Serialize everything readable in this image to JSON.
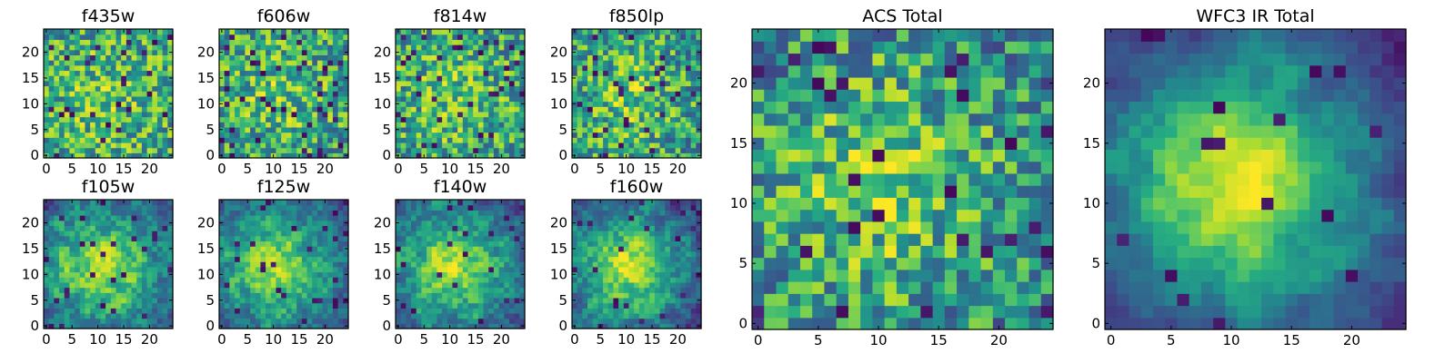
{
  "figure": {
    "description_free": true
  },
  "chart_data": [
    {
      "type": "heatmap",
      "title": "f435w",
      "size": 25,
      "seed": 11,
      "smooth": 0,
      "blob": 0.1,
      "dark": 0.05,
      "xticks": [
        0,
        5,
        10,
        15,
        20
      ],
      "yticks": [
        0,
        5,
        10,
        15,
        20
      ]
    },
    {
      "type": "heatmap",
      "title": "f606w",
      "size": 25,
      "seed": 23,
      "smooth": 0,
      "blob": 0.15,
      "dark": 0.06,
      "xticks": [
        0,
        5,
        10,
        15,
        20
      ],
      "yticks": [
        0,
        5,
        10,
        15,
        20
      ]
    },
    {
      "type": "heatmap",
      "title": "f814w",
      "size": 25,
      "seed": 37,
      "smooth": 0,
      "blob": 0.15,
      "dark": 0.05,
      "xticks": [
        0,
        5,
        10,
        15,
        20
      ],
      "yticks": [
        0,
        5,
        10,
        15,
        20
      ]
    },
    {
      "type": "heatmap",
      "title": "f850lp",
      "size": 25,
      "seed": 41,
      "smooth": 0,
      "blob": 0.2,
      "dark": 0.06,
      "xticks": [
        0,
        5,
        10,
        15,
        20
      ],
      "yticks": [
        0,
        5,
        10,
        15,
        20
      ]
    },
    {
      "type": "heatmap",
      "title": "f105w",
      "size": 25,
      "seed": 53,
      "smooth": 1,
      "blob": 0.45,
      "dark": 0.04,
      "xticks": [
        0,
        5,
        10,
        15,
        20
      ],
      "yticks": [
        0,
        5,
        10,
        15,
        20
      ]
    },
    {
      "type": "heatmap",
      "title": "f125w",
      "size": 25,
      "seed": 67,
      "smooth": 1,
      "blob": 0.5,
      "dark": 0.04,
      "xticks": [
        0,
        5,
        10,
        15,
        20
      ],
      "yticks": [
        0,
        5,
        10,
        15,
        20
      ]
    },
    {
      "type": "heatmap",
      "title": "f140w",
      "size": 25,
      "seed": 71,
      "smooth": 1,
      "blob": 0.5,
      "dark": 0.04,
      "xticks": [
        0,
        5,
        10,
        15,
        20
      ],
      "yticks": [
        0,
        5,
        10,
        15,
        20
      ]
    },
    {
      "type": "heatmap",
      "title": "f160w",
      "size": 25,
      "seed": 83,
      "smooth": 1,
      "blob": 0.55,
      "dark": 0.05,
      "xticks": [
        0,
        5,
        10,
        15,
        20
      ],
      "yticks": [
        0,
        5,
        10,
        15,
        20
      ]
    },
    {
      "type": "heatmap",
      "title": "ACS Total",
      "size": 25,
      "seed": 97,
      "smooth": 0,
      "blob": 0.3,
      "dark": 0.03,
      "xticks": [
        0,
        5,
        10,
        15,
        20
      ],
      "yticks": [
        0,
        5,
        10,
        15,
        20
      ]
    },
    {
      "type": "heatmap",
      "title": "WFC3 IR Total",
      "size": 25,
      "seed": 101,
      "smooth": 2,
      "blob": 0.65,
      "dark": 0.03,
      "xticks": [
        0,
        5,
        10,
        15,
        20
      ],
      "yticks": [
        0,
        5,
        10,
        15,
        20
      ]
    }
  ],
  "colormap": "viridis-like"
}
